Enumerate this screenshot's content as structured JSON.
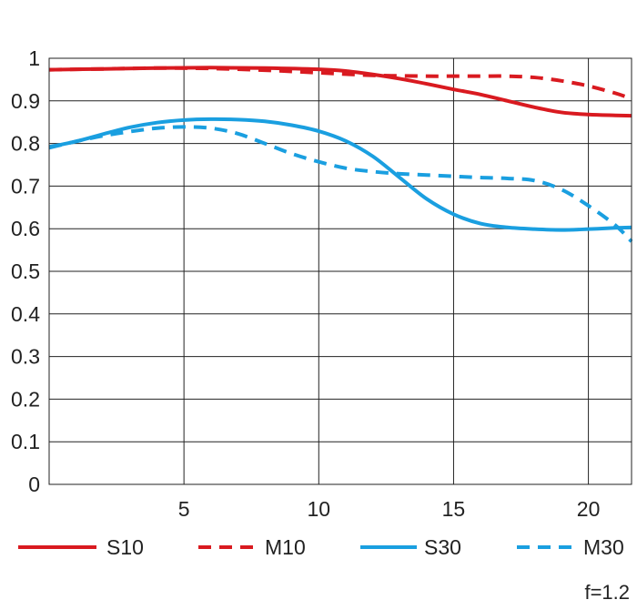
{
  "chart_data": {
    "type": "line",
    "title": "",
    "xlabel": "",
    "ylabel": "",
    "xlim": [
      0,
      21.6
    ],
    "ylim": [
      0,
      1
    ],
    "x_ticks": [
      5,
      10,
      15,
      20
    ],
    "x_tick_labels": [
      "5",
      "10",
      "15",
      "20"
    ],
    "y_ticks": [
      0,
      0.1,
      0.2,
      0.3,
      0.4,
      0.5,
      0.6,
      0.7,
      0.8,
      0.9,
      1
    ],
    "y_tick_labels": [
      "0",
      "0.1",
      "0.2",
      "0.3",
      "0.4",
      "0.5",
      "0.6",
      "0.7",
      "0.8",
      "0.9",
      "1"
    ],
    "grid": true,
    "legend_position": "bottom",
    "annotation": "f=1.2",
    "series": [
      {
        "name": "S10",
        "color": "#d91a20",
        "dashed": false,
        "x": [
          0,
          2,
          4,
          6,
          8,
          10,
          11,
          12,
          13,
          14,
          15,
          16,
          17,
          18,
          19,
          20,
          21,
          21.6
        ],
        "y": [
          0.973,
          0.975,
          0.977,
          0.978,
          0.977,
          0.974,
          0.97,
          0.962,
          0.952,
          0.94,
          0.927,
          0.915,
          0.9,
          0.885,
          0.873,
          0.868,
          0.866,
          0.865
        ]
      },
      {
        "name": "M10",
        "color": "#d91a20",
        "dashed": true,
        "x": [
          0,
          2,
          4,
          6,
          8,
          10,
          12,
          14,
          15,
          16,
          17,
          18,
          19,
          20,
          21,
          21.6
        ],
        "y": [
          0.973,
          0.975,
          0.977,
          0.976,
          0.972,
          0.966,
          0.96,
          0.958,
          0.958,
          0.958,
          0.958,
          0.955,
          0.947,
          0.935,
          0.918,
          0.905
        ]
      },
      {
        "name": "S30",
        "color": "#1a9fe0",
        "dashed": false,
        "x": [
          0,
          1,
          2,
          3,
          4,
          5,
          6,
          7,
          8,
          9,
          10,
          11,
          12,
          13,
          14,
          15,
          16,
          17,
          18,
          19,
          20,
          21,
          21.6
        ],
        "y": [
          0.792,
          0.805,
          0.822,
          0.838,
          0.849,
          0.855,
          0.857,
          0.856,
          0.852,
          0.843,
          0.829,
          0.806,
          0.77,
          0.72,
          0.67,
          0.634,
          0.612,
          0.603,
          0.599,
          0.597,
          0.599,
          0.602,
          0.603
        ]
      },
      {
        "name": "M30",
        "color": "#1a9fe0",
        "dashed": true,
        "x": [
          0,
          1,
          2,
          3,
          4,
          5,
          6,
          7,
          8,
          9,
          10,
          11,
          12,
          13,
          14,
          15,
          16,
          17,
          18,
          19,
          20,
          21,
          21.6
        ],
        "y": [
          0.79,
          0.805,
          0.818,
          0.828,
          0.836,
          0.839,
          0.836,
          0.823,
          0.8,
          0.776,
          0.757,
          0.742,
          0.734,
          0.729,
          0.726,
          0.723,
          0.72,
          0.718,
          0.713,
          0.692,
          0.654,
          0.608,
          0.57
        ]
      }
    ]
  }
}
